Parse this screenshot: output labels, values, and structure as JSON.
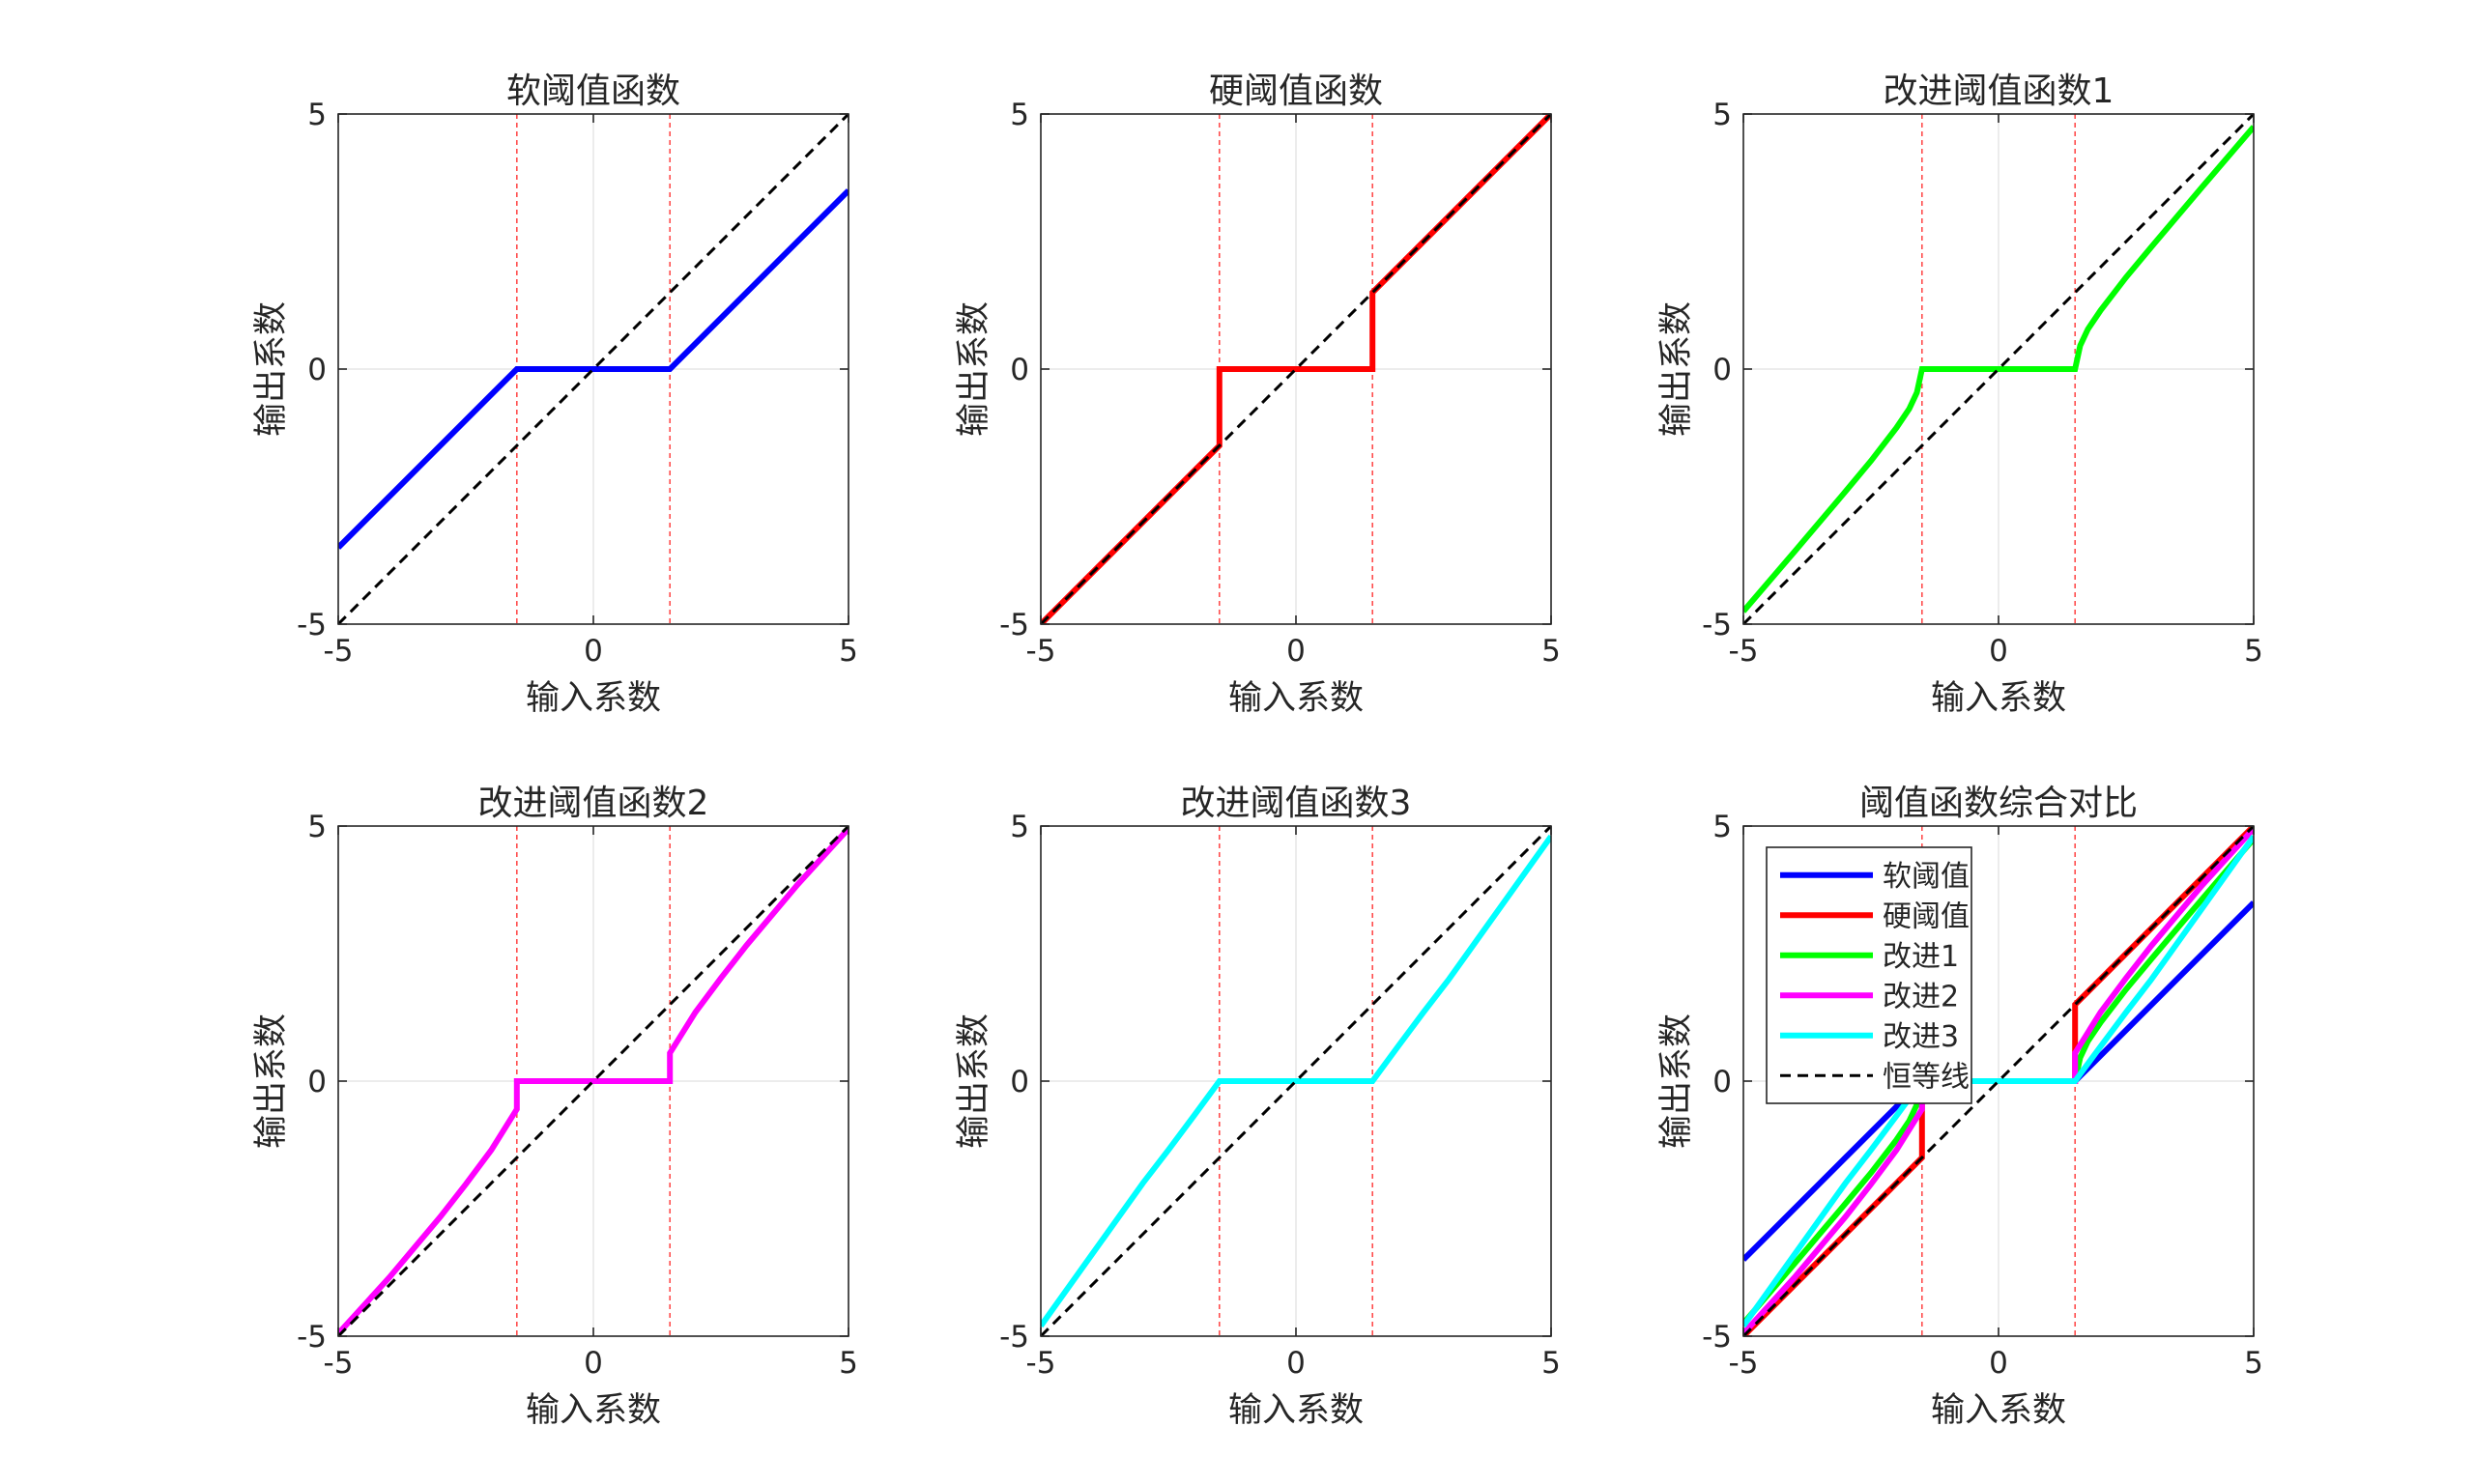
{
  "figure": {
    "background": "#ffffff"
  },
  "chart_data": [
    {
      "type": "line",
      "title": "软阈值函数",
      "xlabel": "输入系数",
      "ylabel": "输出系数",
      "xlim": [
        -5,
        5
      ],
      "ylim": [
        -5,
        5
      ],
      "xticks": [
        "-5",
        "0",
        "5"
      ],
      "yticks": [
        "-5",
        "0",
        "5"
      ],
      "grid": true,
      "threshold_lines_x": [
        -1.5,
        1.5
      ],
      "series": [
        {
          "color": "#0000ff",
          "width": 6,
          "dash": "solid",
          "x": [
            -5,
            -1.5,
            1.5,
            5
          ],
          "y": [
            -3.5,
            0,
            0,
            3.5
          ]
        },
        {
          "color": "#000000",
          "width": 3,
          "dash": "dashed",
          "x": [
            -5,
            5
          ],
          "y": [
            -5,
            5
          ]
        }
      ]
    },
    {
      "type": "line",
      "title": "硬阈值函数",
      "xlabel": "输入系数",
      "ylabel": "输出系数",
      "xlim": [
        -5,
        5
      ],
      "ylim": [
        -5,
        5
      ],
      "xticks": [
        "-5",
        "0",
        "5"
      ],
      "yticks": [
        "-5",
        "0",
        "5"
      ],
      "grid": true,
      "threshold_lines_x": [
        -1.5,
        1.5
      ],
      "series": [
        {
          "color": "#ff0000",
          "width": 6,
          "dash": "solid",
          "x": [
            -5,
            -1.5,
            -1.5,
            1.5,
            1.5,
            5
          ],
          "y": [
            -5,
            -1.5,
            0,
            0,
            1.5,
            5
          ]
        },
        {
          "color": "#000000",
          "width": 3,
          "dash": "dashed",
          "x": [
            -5,
            5
          ],
          "y": [
            -5,
            5
          ]
        }
      ]
    },
    {
      "type": "line",
      "title": "改进阈值函数1",
      "xlabel": "输入系数",
      "ylabel": "输出系数",
      "xlim": [
        -5,
        5
      ],
      "ylim": [
        -5,
        5
      ],
      "xticks": [
        "-5",
        "0",
        "5"
      ],
      "yticks": [
        "-5",
        "0",
        "5"
      ],
      "grid": true,
      "threshold_lines_x": [
        -1.5,
        1.5
      ],
      "series": [
        {
          "color": "#00ff00",
          "width": 6,
          "dash": "solid",
          "x": [
            -5,
            -4,
            -3,
            -2.5,
            -2,
            -1.75,
            -1.6,
            -1.5,
            1.5,
            1.5,
            1.6,
            1.75,
            2,
            2.5,
            3,
            4,
            5
          ],
          "y": [
            -4.75,
            -3.58,
            -2.4,
            -1.8,
            -1.15,
            -0.78,
            -0.46,
            0,
            0,
            0,
            0.46,
            0.78,
            1.15,
            1.8,
            2.4,
            3.58,
            4.75
          ]
        },
        {
          "color": "#000000",
          "width": 3,
          "dash": "dashed",
          "x": [
            -5,
            5
          ],
          "y": [
            -5,
            5
          ]
        }
      ]
    },
    {
      "type": "line",
      "title": "改进阈值函数2",
      "xlabel": "输入系数",
      "ylabel": "输出系数",
      "xlim": [
        -5,
        5
      ],
      "ylim": [
        -5,
        5
      ],
      "xticks": [
        "-5",
        "0",
        "5"
      ],
      "yticks": [
        "-5",
        "0",
        "5"
      ],
      "grid": true,
      "threshold_lines_x": [
        -1.5,
        1.5
      ],
      "series": [
        {
          "color": "#ff00ff",
          "width": 6,
          "dash": "solid",
          "x": [
            -5,
            -4,
            -3,
            -2.5,
            -2,
            -1.5,
            -1.5,
            1.5,
            1.5,
            2,
            2.5,
            3,
            4,
            5
          ],
          "y": [
            -4.95,
            -3.85,
            -2.66,
            -2.02,
            -1.35,
            -0.55,
            0,
            0,
            0.55,
            1.35,
            2.02,
            2.66,
            3.85,
            4.95
          ]
        },
        {
          "color": "#000000",
          "width": 3,
          "dash": "dashed",
          "x": [
            -5,
            5
          ],
          "y": [
            -5,
            5
          ]
        }
      ]
    },
    {
      "type": "line",
      "title": "改进阈值函数3",
      "xlabel": "输入系数",
      "ylabel": "输出系数",
      "xlim": [
        -5,
        5
      ],
      "ylim": [
        -5,
        5
      ],
      "xticks": [
        "-5",
        "0",
        "5"
      ],
      "yticks": [
        "-5",
        "0",
        "5"
      ],
      "grid": true,
      "threshold_lines_x": [
        -1.5,
        1.5
      ],
      "series": [
        {
          "color": "#00ffff",
          "width": 6,
          "dash": "solid",
          "x": [
            -5,
            -4,
            -3,
            -2.5,
            -2,
            -1.5,
            1.5,
            2,
            2.5,
            3,
            4,
            5
          ],
          "y": [
            -4.8,
            -3.4,
            -2.0,
            -1.35,
            -0.68,
            0,
            0,
            0.68,
            1.35,
            2.0,
            3.4,
            4.8
          ]
        },
        {
          "color": "#000000",
          "width": 3,
          "dash": "dashed",
          "x": [
            -5,
            5
          ],
          "y": [
            -5,
            5
          ]
        }
      ]
    },
    {
      "type": "line",
      "title": "阈值函数综合对比",
      "xlabel": "输入系数",
      "ylabel": "输出系数",
      "xlim": [
        -5,
        5
      ],
      "ylim": [
        -5,
        5
      ],
      "xticks": [
        "-5",
        "0",
        "5"
      ],
      "yticks": [
        "-5",
        "0",
        "5"
      ],
      "grid": true,
      "threshold_lines_x": [
        -1.5,
        1.5
      ],
      "legend": {
        "position": "top-left"
      },
      "series": [
        {
          "name": "软阈值",
          "color": "#0000ff",
          "width": 6,
          "dash": "solid",
          "x": [
            -5,
            -1.5,
            1.5,
            5
          ],
          "y": [
            -3.5,
            0,
            0,
            3.5
          ]
        },
        {
          "name": "硬阈值",
          "color": "#ff0000",
          "width": 6,
          "dash": "solid",
          "x": [
            -5,
            -1.5,
            -1.5,
            1.5,
            1.5,
            5
          ],
          "y": [
            -5,
            -1.5,
            0,
            0,
            1.5,
            5
          ]
        },
        {
          "name": "改进1",
          "color": "#00ff00",
          "width": 6,
          "dash": "solid",
          "x": [
            -5,
            -4,
            -3,
            -2.5,
            -2,
            -1.75,
            -1.6,
            -1.5,
            1.5,
            1.5,
            1.6,
            1.75,
            2,
            2.5,
            3,
            4,
            5
          ],
          "y": [
            -4.75,
            -3.58,
            -2.4,
            -1.8,
            -1.15,
            -0.78,
            -0.46,
            0,
            0,
            0,
            0.46,
            0.78,
            1.15,
            1.8,
            2.4,
            3.58,
            4.75
          ]
        },
        {
          "name": "改进2",
          "color": "#ff00ff",
          "width": 6,
          "dash": "solid",
          "x": [
            -5,
            -4,
            -3,
            -2.5,
            -2,
            -1.5,
            -1.5,
            1.5,
            1.5,
            2,
            2.5,
            3,
            4,
            5
          ],
          "y": [
            -4.95,
            -3.85,
            -2.66,
            -2.02,
            -1.35,
            -0.55,
            0,
            0,
            0.55,
            1.35,
            2.02,
            2.66,
            3.85,
            4.95
          ]
        },
        {
          "name": "改进3",
          "color": "#00ffff",
          "width": 6,
          "dash": "solid",
          "x": [
            -5,
            -4,
            -3,
            -2.5,
            -2,
            -1.5,
            1.5,
            2,
            2.5,
            3,
            4,
            5
          ],
          "y": [
            -4.8,
            -3.4,
            -2.0,
            -1.35,
            -0.68,
            0,
            0,
            0.68,
            1.35,
            2.0,
            3.4,
            4.8
          ]
        },
        {
          "name": "恒等线",
          "color": "#000000",
          "width": 3,
          "dash": "dashed",
          "x": [
            -5,
            5
          ],
          "y": [
            -5,
            5
          ]
        }
      ]
    }
  ]
}
